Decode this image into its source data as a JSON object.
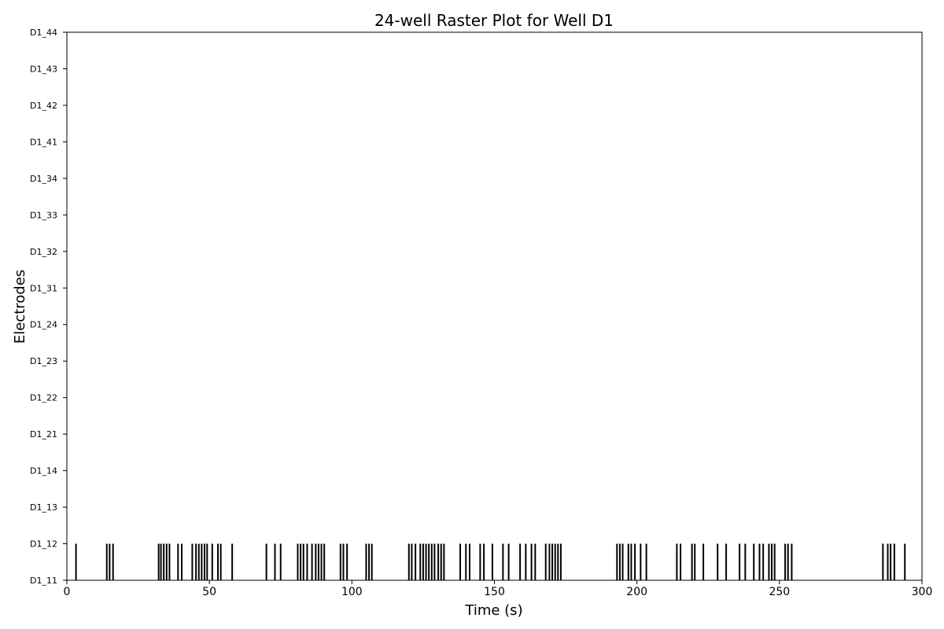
{
  "chart_data": {
    "type": "raster",
    "title": "24-well Raster Plot for Well D1",
    "xlabel": "Time (s)",
    "ylabel": "Electrodes",
    "xlim": [
      0,
      300
    ],
    "xticks": [
      0,
      50,
      100,
      150,
      200,
      250,
      300
    ],
    "electrodes": [
      "D1_11",
      "D1_12",
      "D1_13",
      "D1_14",
      "D1_21",
      "D1_22",
      "D1_23",
      "D1_24",
      "D1_31",
      "D1_32",
      "D1_33",
      "D1_34",
      "D1_41",
      "D1_42",
      "D1_43",
      "D1_44"
    ],
    "grid": false,
    "series": [
      {
        "electrode": "D1_12",
        "color": "#000000",
        "spike_times": [
          3.2,
          14.0,
          15.0,
          16.2,
          32.2,
          33.0,
          34.0,
          35.0,
          36.0,
          39.0,
          40.3,
          44.0,
          45.3,
          46.3,
          47.3,
          48.3,
          49.2,
          51.0,
          53.0,
          54.0,
          58.0,
          70.0,
          73.0,
          75.0,
          81.0,
          82.0,
          83.0,
          84.3,
          86.0,
          87.3,
          88.3,
          89.3,
          90.3,
          96.0,
          97.0,
          98.3,
          105.0,
          106.0,
          107.0,
          120.0,
          121.0,
          122.3,
          124.0,
          125.0,
          126.0,
          127.0,
          128.0,
          129.0,
          130.3,
          131.3,
          132.3,
          138.0,
          140.0,
          141.3,
          145.0,
          146.3,
          149.3,
          153.0,
          155.0,
          159.0,
          161.0,
          163.0,
          164.3,
          168.0,
          169.3,
          170.3,
          171.3,
          172.3,
          173.3,
          193.0,
          194.0,
          195.0,
          197.0,
          198.0,
          199.3,
          201.3,
          203.3,
          214.0,
          215.3,
          219.3,
          220.3,
          223.3,
          228.3,
          231.3,
          236.0,
          238.0,
          241.0,
          243.0,
          244.3,
          246.3,
          247.3,
          248.3,
          252.0,
          253.0,
          254.3,
          286.3,
          288.0,
          289.0,
          290.3,
          294.0
        ]
      }
    ]
  }
}
